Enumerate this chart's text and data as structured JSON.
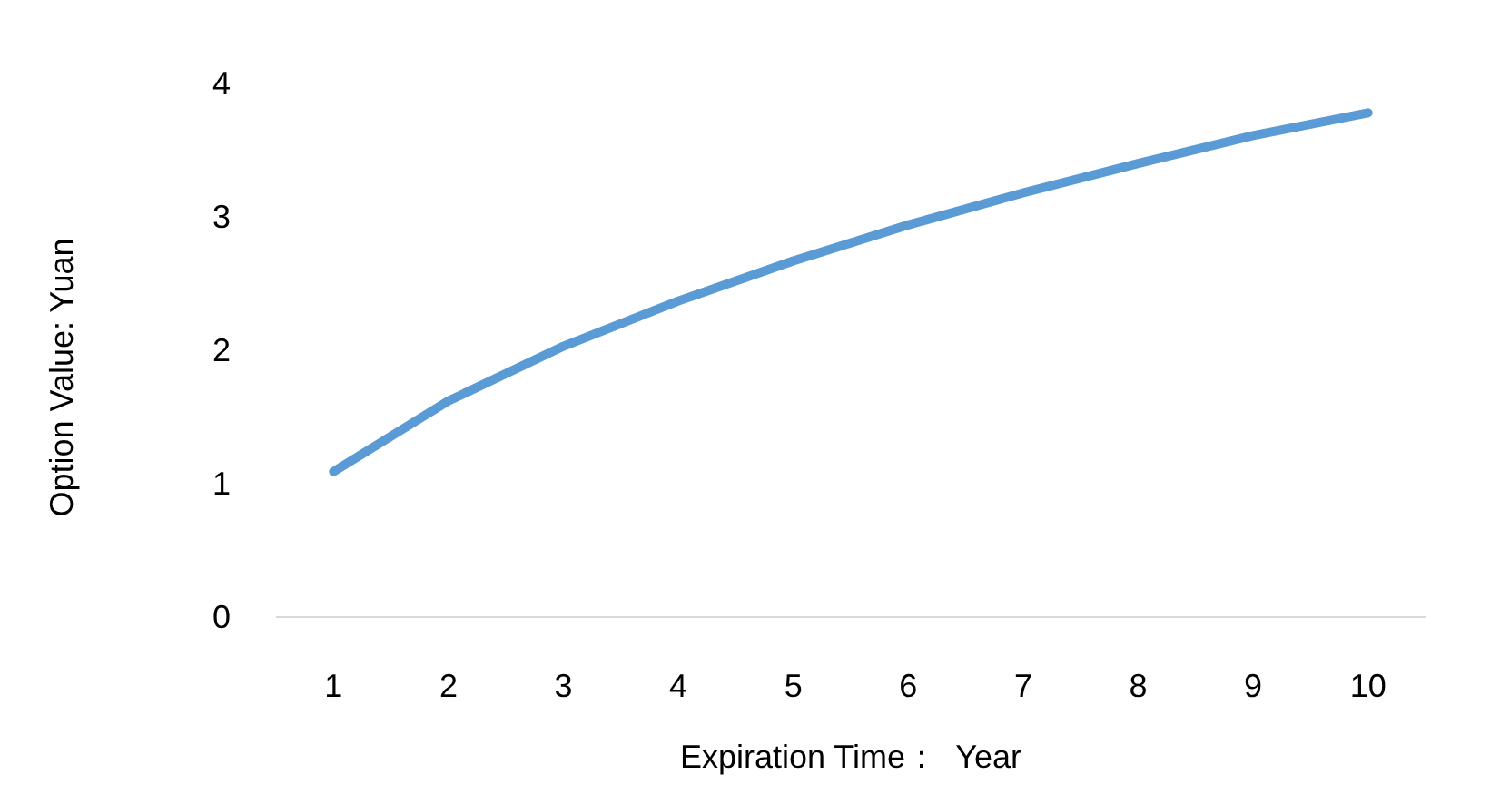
{
  "chart_data": {
    "type": "line",
    "xlabel": "Expiration Time：  Year",
    "ylabel": "Option Value: Yuan",
    "categories": [
      "1",
      "2",
      "3",
      "4",
      "5",
      "6",
      "7",
      "8",
      "9",
      "10"
    ],
    "series": [
      {
        "color": "#5b9bd5",
        "values": [
          1.09,
          1.62,
          2.03,
          2.37,
          2.67,
          2.94,
          3.18,
          3.4,
          3.61,
          3.78
        ]
      }
    ],
    "ylim": [
      0,
      4
    ],
    "yticks": [
      0,
      1,
      2,
      3,
      4
    ],
    "marker": "none",
    "line_style": "solid"
  }
}
